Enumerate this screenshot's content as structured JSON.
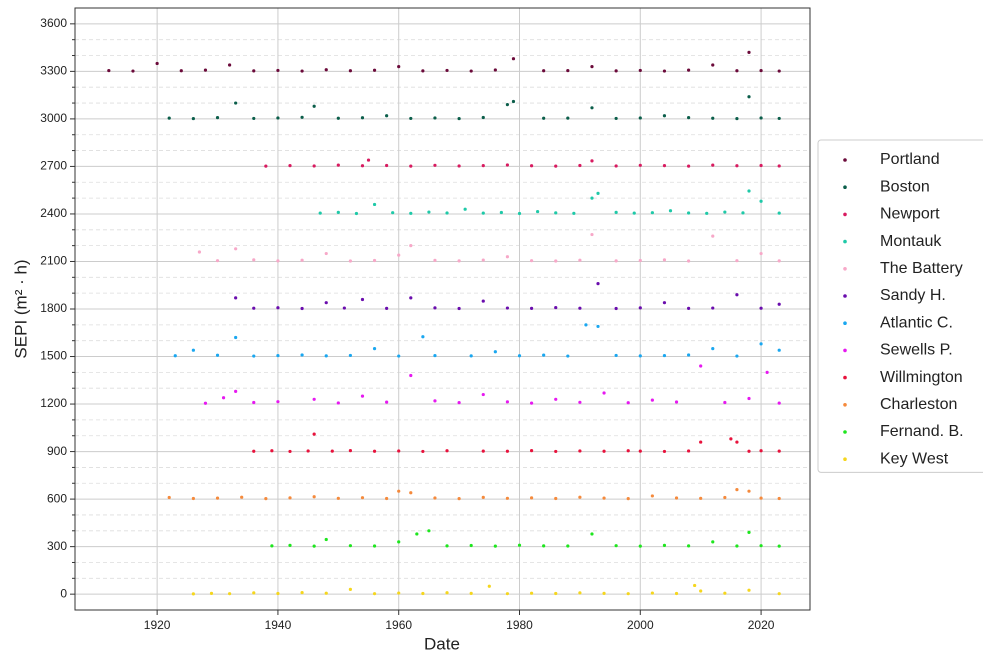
{
  "chart_data": {
    "type": "scatter",
    "xlabel": "Date",
    "ylabel": "SEPI (m² · h)",
    "xlim": [
      1906.4,
      2028.1
    ],
    "ylim": [
      -100,
      3700
    ],
    "xticks": [
      1920,
      1940,
      1960,
      1980,
      2000,
      2020
    ],
    "yticks": [
      0,
      300,
      600,
      900,
      1200,
      1500,
      1800,
      2100,
      2400,
      2700,
      3000,
      3300,
      3600
    ],
    "yminorticks": [
      100,
      200,
      400,
      500,
      700,
      800,
      1000,
      1100,
      1300,
      1400,
      1600,
      1700,
      1900,
      2000,
      2200,
      2300,
      2500,
      2600,
      2800,
      2900,
      3100,
      3200,
      3400,
      3500
    ],
    "grid": true,
    "legend": "right",
    "series": [
      {
        "name": "Portland",
        "color": "#6b0a3a",
        "x": [
          1912,
          1916,
          1920,
          1924,
          1928,
          1932,
          1936,
          1940,
          1944,
          1948,
          1952,
          1956,
          1960,
          1964,
          1968,
          1972,
          1976,
          1979,
          1984,
          1988,
          1992,
          1996,
          2000,
          2004,
          2008,
          2012,
          2016,
          2018,
          2020,
          2023
        ],
        "y": [
          3305,
          3302,
          3350,
          3304,
          3308,
          3340,
          3303,
          3306,
          3302,
          3310,
          3304,
          3307,
          3330,
          3303,
          3306,
          3302,
          3309,
          3380,
          3304,
          3305,
          3330,
          3303,
          3306,
          3302,
          3308,
          3340,
          3304,
          3420,
          3305,
          3302
        ]
      },
      {
        "name": "Boston",
        "color": "#0b5e4a",
        "x": [
          1922,
          1926,
          1930,
          1933,
          1936,
          1940,
          1944,
          1946,
          1950,
          1954,
          1958,
          1962,
          1966,
          1970,
          1974,
          1978,
          1979,
          1984,
          1988,
          1992,
          1996,
          2000,
          2004,
          2008,
          2012,
          2016,
          2018,
          2020,
          2023
        ],
        "y": [
          3005,
          3002,
          3008,
          3100,
          3003,
          3006,
          3010,
          3080,
          3004,
          3007,
          3020,
          3003,
          3006,
          3002,
          3009,
          3090,
          3110,
          3004,
          3005,
          3070,
          3003,
          3006,
          3020,
          3008,
          3004,
          3002,
          3140,
          3006,
          3003
        ]
      },
      {
        "name": "Newport",
        "color": "#d81b60",
        "x": [
          1938,
          1942,
          1946,
          1950,
          1954,
          1955,
          1958,
          1962,
          1966,
          1970,
          1974,
          1978,
          1982,
          1986,
          1990,
          1992,
          1996,
          2000,
          2004,
          2008,
          2012,
          2016,
          2020,
          2023
        ],
        "y": [
          2702,
          2705,
          2703,
          2708,
          2704,
          2740,
          2706,
          2702,
          2707,
          2703,
          2705,
          2709,
          2704,
          2702,
          2706,
          2735,
          2703,
          2707,
          2705,
          2702,
          2708,
          2704,
          2706,
          2703
        ]
      },
      {
        "name": "Montauk",
        "color": "#1fc9a8",
        "x": [
          1947,
          1950,
          1953,
          1956,
          1959,
          1962,
          1965,
          1968,
          1971,
          1974,
          1977,
          1980,
          1983,
          1986,
          1989,
          1992,
          1993,
          1996,
          1999,
          2002,
          2005,
          2008,
          2011,
          2014,
          2017,
          2018,
          2020,
          2023
        ],
        "y": [
          2405,
          2410,
          2403,
          2460,
          2408,
          2404,
          2412,
          2406,
          2430,
          2405,
          2409,
          2403,
          2415,
          2407,
          2404,
          2500,
          2530,
          2410,
          2405,
          2408,
          2420,
          2406,
          2404,
          2412,
          2407,
          2545,
          2480,
          2405
        ]
      },
      {
        "name": "The Battery",
        "color": "#f7a8c8",
        "x": [
          1927,
          1930,
          1933,
          1936,
          1940,
          1944,
          1948,
          1952,
          1956,
          1960,
          1962,
          1966,
          1970,
          1974,
          1978,
          1982,
          1986,
          1990,
          1992,
          1996,
          2000,
          2004,
          2008,
          2012,
          2016,
          2020,
          2023
        ],
        "y": [
          2160,
          2105,
          2180,
          2110,
          2104,
          2108,
          2150,
          2103,
          2106,
          2140,
          2200,
          2107,
          2104,
          2109,
          2130,
          2105,
          2103,
          2108,
          2270,
          2104,
          2106,
          2110,
          2103,
          2260,
          2105,
          2150,
          2104
        ]
      },
      {
        "name": "Sandy H.",
        "color": "#6a0dad",
        "x": [
          1933,
          1936,
          1940,
          1944,
          1948,
          1951,
          1954,
          1958,
          1962,
          1966,
          1970,
          1974,
          1978,
          1982,
          1986,
          1990,
          1993,
          1996,
          2000,
          2004,
          2008,
          2012,
          2016,
          2020,
          2023
        ],
        "y": [
          1870,
          1805,
          1808,
          1803,
          1840,
          1806,
          1860,
          1804,
          1870,
          1807,
          1803,
          1850,
          1806,
          1804,
          1809,
          1805,
          1960,
          1803,
          1807,
          1840,
          1804,
          1806,
          1890,
          1805,
          1830
        ]
      },
      {
        "name": "Atlantic C.",
        "color": "#1aa7f0",
        "x": [
          1923,
          1926,
          1930,
          1933,
          1936,
          1940,
          1944,
          1948,
          1952,
          1956,
          1960,
          1964,
          1966,
          1972,
          1976,
          1980,
          1984,
          1988,
          1991,
          1993,
          1996,
          2000,
          2004,
          2008,
          2012,
          2016,
          2020,
          2023
        ],
        "y": [
          1505,
          1540,
          1508,
          1620,
          1503,
          1506,
          1510,
          1504,
          1507,
          1550,
          1503,
          1625,
          1506,
          1504,
          1530,
          1505,
          1509,
          1503,
          1700,
          1690,
          1507,
          1504,
          1506,
          1510,
          1550,
          1503,
          1580,
          1540
        ]
      },
      {
        "name": "Sewells P.",
        "color": "#e619f0",
        "x": [
          1928,
          1931,
          1933,
          1936,
          1940,
          1946,
          1950,
          1954,
          1958,
          1962,
          1966,
          1970,
          1974,
          1978,
          1982,
          1986,
          1990,
          1994,
          1998,
          2002,
          2006,
          2010,
          2014,
          2018,
          2021,
          2023
        ],
        "y": [
          1205,
          1240,
          1280,
          1210,
          1215,
          1230,
          1207,
          1250,
          1212,
          1380,
          1220,
          1209,
          1260,
          1214,
          1206,
          1230,
          1211,
          1270,
          1208,
          1225,
          1213,
          1440,
          1210,
          1235,
          1400,
          1206
        ]
      },
      {
        "name": "Willmington",
        "color": "#e8123c",
        "x": [
          1936,
          1939,
          1942,
          1945,
          1946,
          1949,
          1952,
          1956,
          1960,
          1964,
          1968,
          1974,
          1978,
          1982,
          1986,
          1990,
          1994,
          1998,
          2000,
          2004,
          2008,
          2010,
          2015,
          2016,
          2018,
          2020,
          2023
        ],
        "y": [
          902,
          905,
          901,
          904,
          1010,
          903,
          906,
          902,
          904,
          901,
          905,
          903,
          902,
          906,
          901,
          904,
          902,
          905,
          903,
          901,
          904,
          960,
          980,
          960,
          902,
          905,
          903
        ]
      },
      {
        "name": "Charleston",
        "color": "#f58a3c",
        "x": [
          1922,
          1926,
          1930,
          1934,
          1938,
          1942,
          1946,
          1950,
          1954,
          1958,
          1960,
          1962,
          1966,
          1970,
          1974,
          1978,
          1982,
          1986,
          1990,
          1994,
          1998,
          2002,
          2006,
          2010,
          2014,
          2016,
          2018,
          2020,
          2023
        ],
        "y": [
          610,
          604,
          606,
          612,
          603,
          608,
          615,
          605,
          609,
          604,
          650,
          640,
          607,
          603,
          611,
          605,
          608,
          604,
          612,
          606,
          603,
          620,
          607,
          605,
          610,
          660,
          650,
          606,
          604
        ]
      },
      {
        "name": "Fernand. B.",
        "color": "#1ee61e",
        "x": [
          1939,
          1942,
          1946,
          1948,
          1952,
          1956,
          1960,
          1963,
          1965,
          1968,
          1972,
          1976,
          1980,
          1984,
          1988,
          1992,
          1996,
          2000,
          2004,
          2008,
          2012,
          2016,
          2018,
          2020,
          2023
        ],
        "y": [
          305,
          308,
          303,
          345,
          306,
          304,
          330,
          380,
          400,
          305,
          307,
          303,
          309,
          305,
          304,
          380,
          306,
          303,
          308,
          305,
          330,
          304,
          390,
          306,
          303
        ]
      },
      {
        "name": "Key West",
        "color": "#f5d61e",
        "x": [
          1926,
          1929,
          1932,
          1936,
          1940,
          1944,
          1948,
          1952,
          1956,
          1960,
          1964,
          1968,
          1972,
          1975,
          1978,
          1982,
          1986,
          1990,
          1994,
          1998,
          2002,
          2006,
          2009,
          2010,
          2014,
          2018,
          2023
        ],
        "y": [
          2,
          5,
          3,
          8,
          4,
          10,
          6,
          30,
          3,
          7,
          4,
          9,
          5,
          50,
          3,
          6,
          4,
          8,
          5,
          3,
          7,
          4,
          55,
          20,
          6,
          25,
          3
        ]
      }
    ]
  }
}
